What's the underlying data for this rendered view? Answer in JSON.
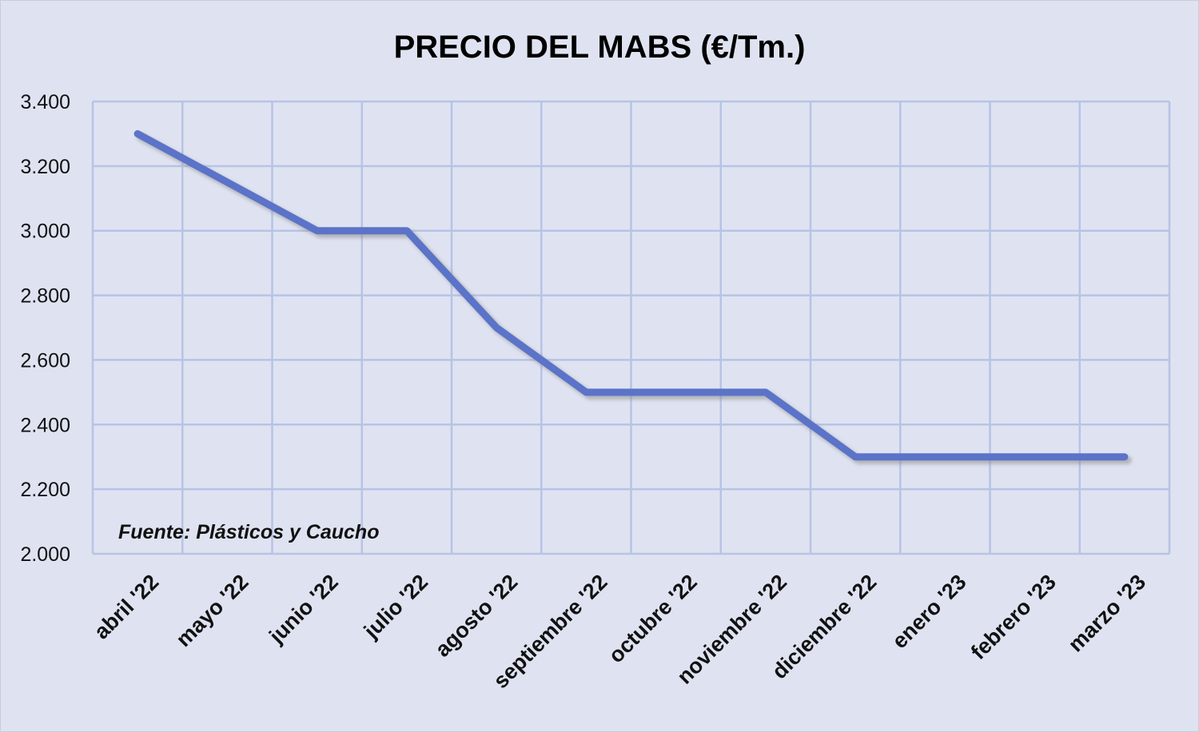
{
  "chart_data": {
    "type": "line",
    "title": "PRECIO DEL MABS (€/Tm.)",
    "xlabel": "",
    "ylabel": "",
    "categories": [
      "abril '22",
      "mayo '22",
      "junio '22",
      "julio '22",
      "agosto '22",
      "septiembre '22",
      "octubre '22",
      "noviembre '22",
      "diciembre '22",
      "enero '23",
      "febrero '23",
      "marzo '23"
    ],
    "series": [
      {
        "values": [
          3300,
          3150,
          3000,
          3000,
          2700,
          2500,
          2500,
          2500,
          2300,
          2300,
          2300,
          2300
        ],
        "color": "#5b73c8"
      }
    ],
    "ylim": [
      2000,
      3400
    ],
    "yticks": [
      2000,
      2200,
      2400,
      2600,
      2800,
      3000,
      3200,
      3400
    ],
    "ytick_labels": [
      "2.000",
      "2.200",
      "2.400",
      "2.600",
      "2.800",
      "3.000",
      "3.200",
      "3.400"
    ],
    "grid": true,
    "annotation": "Fuente: Plásticos y Caucho",
    "colors": {
      "background": "#dfe3f1",
      "grid": "#b7c3e6",
      "line": "#5b73c8",
      "shadow": "#8a8a8a"
    }
  }
}
